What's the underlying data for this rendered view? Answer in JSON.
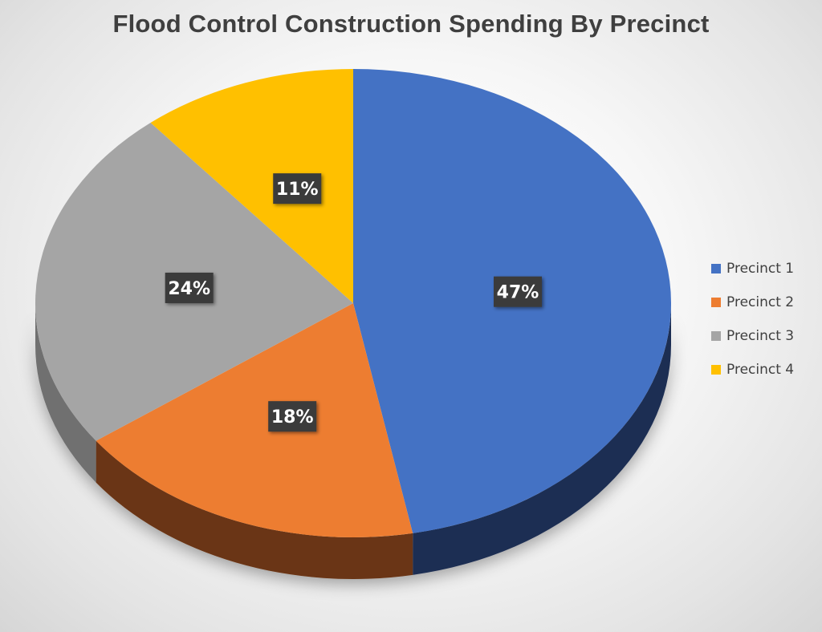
{
  "chart_data": {
    "type": "pie",
    "title": "Flood Control Construction Spending By Precinct",
    "categories": [
      "Precinct 1",
      "Precinct 2",
      "Precinct 3",
      "Precinct 4"
    ],
    "values": [
      47,
      18,
      24,
      11
    ],
    "labels": [
      "47%",
      "18%",
      "24%",
      "11%"
    ],
    "colors": [
      "#4472c4",
      "#ed7d31",
      "#a5a5a5",
      "#ffc000"
    ],
    "side_colors": [
      "#1f2e52",
      "#6b3412",
      "#6f6f6f",
      "#8a6a00"
    ],
    "legend_position": "right",
    "style": "3d-pie"
  }
}
